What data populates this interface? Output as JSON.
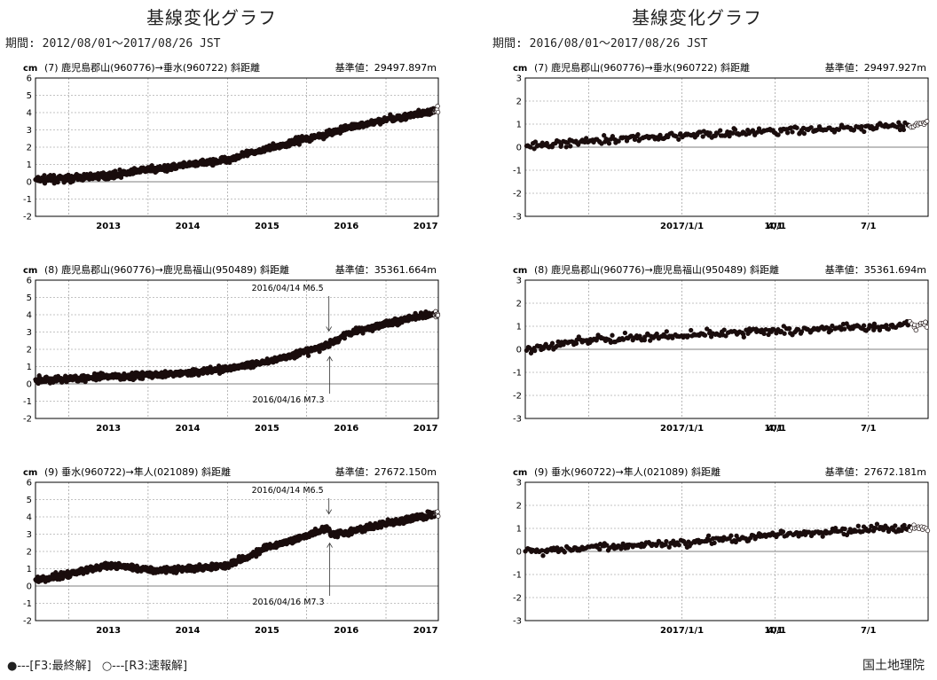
{
  "columns": [
    {
      "title": "基線変化グラフ",
      "period": "期間: 2012/08/01～2017/08/26 JST"
    },
    {
      "title": "基線変化グラフ",
      "period": "期間: 2016/08/01～2017/08/26 JST"
    }
  ],
  "legend": {
    "final": "●---[F3:最終解]",
    "quick": "○---[R3:速報解]"
  },
  "organization": "国土地理院",
  "colors": {
    "points": "#1a0d0d",
    "grid": "#888888",
    "axis": "#000000"
  },
  "chart_data": [
    {
      "type": "scatter",
      "unit": "cm",
      "header": "(7) 鹿児島郡山(960776)→垂水(960722)  斜距離",
      "reference": "基準値：29497.897m",
      "ylim": [
        -2,
        6
      ],
      "yticks": [
        "-2",
        "-1",
        "0",
        "1",
        "2",
        "3",
        "4",
        "5",
        "6"
      ],
      "xlim": [
        2012.58,
        2017.66
      ],
      "xtick_pos": [
        2013,
        2014,
        2015,
        2016,
        2017
      ],
      "xtick_labels": [
        "2013",
        "2014",
        "2015",
        "2016",
        "2017"
      ],
      "grid": true,
      "trend": [
        [
          2012.58,
          0.1
        ],
        [
          2013.0,
          0.2
        ],
        [
          2013.5,
          0.35
        ],
        [
          2014.0,
          0.7
        ],
        [
          2014.5,
          0.95
        ],
        [
          2015.0,
          1.3
        ],
        [
          2015.5,
          1.9
        ],
        [
          2016.0,
          2.5
        ],
        [
          2016.29,
          2.8
        ],
        [
          2016.5,
          3.1
        ],
        [
          2017.0,
          3.6
        ],
        [
          2017.66,
          4.1
        ]
      ],
      "annotations": []
    },
    {
      "type": "scatter",
      "unit": "cm",
      "header": "(8) 鹿児島郡山(960776)→鹿児島福山(950489)  斜距離",
      "reference": "基準値：35361.664m",
      "ylim": [
        -2,
        6
      ],
      "yticks": [
        "-2",
        "-1",
        "0",
        "1",
        "2",
        "3",
        "4",
        "5",
        "6"
      ],
      "xlim": [
        2012.58,
        2017.66
      ],
      "xtick_pos": [
        2013,
        2014,
        2015,
        2016,
        2017
      ],
      "xtick_labels": [
        "2013",
        "2014",
        "2015",
        "2016",
        "2017"
      ],
      "grid": true,
      "trend": [
        [
          2012.58,
          0.2
        ],
        [
          2013.0,
          0.3
        ],
        [
          2013.5,
          0.4
        ],
        [
          2014.0,
          0.5
        ],
        [
          2014.5,
          0.65
        ],
        [
          2015.0,
          0.9
        ],
        [
          2015.5,
          1.3
        ],
        [
          2016.0,
          1.85
        ],
        [
          2016.29,
          2.3
        ],
        [
          2016.5,
          2.9
        ],
        [
          2017.0,
          3.5
        ],
        [
          2017.66,
          4.1
        ]
      ],
      "annotations": [
        {
          "x": 2016.28,
          "text": "2016/04/14 M6.5",
          "dir": "down"
        },
        {
          "x": 2016.29,
          "text": "2016/04/16 M7.3",
          "dir": "up"
        }
      ]
    },
    {
      "type": "scatter",
      "unit": "cm",
      "header": "(9) 垂水(960722)→隼人(021089)  斜距離",
      "reference": "基準値：27672.150m",
      "ylim": [
        -2,
        6
      ],
      "yticks": [
        "-2",
        "-1",
        "0",
        "1",
        "2",
        "3",
        "4",
        "5",
        "6"
      ],
      "xlim": [
        2012.58,
        2017.66
      ],
      "xtick_pos": [
        2013,
        2014,
        2015,
        2016,
        2017
      ],
      "xtick_labels": [
        "2013",
        "2014",
        "2015",
        "2016",
        "2017"
      ],
      "grid": true,
      "trend": [
        [
          2012.58,
          0.3
        ],
        [
          2013.0,
          0.7
        ],
        [
          2013.5,
          1.2
        ],
        [
          2013.8,
          1.1
        ],
        [
          2014.0,
          0.9
        ],
        [
          2014.5,
          1.0
        ],
        [
          2015.0,
          1.2
        ],
        [
          2015.5,
          2.2
        ],
        [
          2016.0,
          2.9
        ],
        [
          2016.28,
          3.4
        ],
        [
          2016.3,
          3.0
        ],
        [
          2016.5,
          3.1
        ],
        [
          2017.0,
          3.6
        ],
        [
          2017.66,
          4.2
        ]
      ],
      "annotations": [
        {
          "x": 2016.28,
          "text": "2016/04/14 M6.5",
          "dir": "down"
        },
        {
          "x": 2016.29,
          "text": "2016/04/16 M7.3",
          "dir": "up"
        }
      ]
    },
    {
      "type": "scatter",
      "unit": "cm",
      "header": "(7) 鹿児島郡山(960776)→垂水(960722)  斜距離",
      "reference": "基準値：29497.927m",
      "ylim": [
        -3,
        3
      ],
      "yticks": [
        "-3",
        "-2",
        "-1",
        "0",
        "1",
        "2",
        "3"
      ],
      "xlim": [
        2016.58,
        2017.66
      ],
      "xtick_pos": [
        2016.75,
        2017.0,
        2017.25,
        2017.5
      ],
      "xtick_labels": [
        "10/1",
        "2017/1/1",
        "4/1",
        "7/1"
      ],
      "grid": true,
      "trend": [
        [
          2016.58,
          0.0
        ],
        [
          2016.7,
          0.2
        ],
        [
          2016.8,
          0.35
        ],
        [
          2017.0,
          0.5
        ],
        [
          2017.25,
          0.7
        ],
        [
          2017.5,
          0.85
        ],
        [
          2017.66,
          1.0
        ]
      ],
      "annotations": []
    },
    {
      "type": "scatter",
      "unit": "cm",
      "header": "(8) 鹿児島郡山(960776)→鹿児島福山(950489)  斜距離",
      "reference": "基準値：35361.694m",
      "ylim": [
        -3,
        3
      ],
      "yticks": [
        "-3",
        "-2",
        "-1",
        "0",
        "1",
        "2",
        "3"
      ],
      "xlim": [
        2016.58,
        2017.66
      ],
      "xtick_pos": [
        2016.75,
        2017.0,
        2017.25,
        2017.5
      ],
      "xtick_labels": [
        "10/1",
        "2017/1/1",
        "4/1",
        "7/1"
      ],
      "grid": true,
      "trend": [
        [
          2016.58,
          0.0
        ],
        [
          2016.7,
          0.3
        ],
        [
          2016.8,
          0.45
        ],
        [
          2017.0,
          0.6
        ],
        [
          2017.25,
          0.8
        ],
        [
          2017.5,
          0.95
        ],
        [
          2017.66,
          1.1
        ]
      ],
      "annotations": []
    },
    {
      "type": "scatter",
      "unit": "cm",
      "header": "(9) 垂水(960722)→隼人(021089)  斜距離",
      "reference": "基準値：27672.181m",
      "ylim": [
        -3,
        3
      ],
      "yticks": [
        "-3",
        "-2",
        "-1",
        "0",
        "1",
        "2",
        "3"
      ],
      "xlim": [
        2016.58,
        2017.66
      ],
      "xtick_pos": [
        2016.75,
        2017.0,
        2017.25,
        2017.5
      ],
      "xtick_labels": [
        "10/1",
        "2017/1/1",
        "4/1",
        "7/1"
      ],
      "grid": true,
      "trend": [
        [
          2016.58,
          0.0
        ],
        [
          2016.7,
          0.1
        ],
        [
          2016.8,
          0.2
        ],
        [
          2017.0,
          0.4
        ],
        [
          2017.25,
          0.7
        ],
        [
          2017.5,
          0.95
        ],
        [
          2017.66,
          1.05
        ]
      ],
      "annotations": []
    }
  ]
}
